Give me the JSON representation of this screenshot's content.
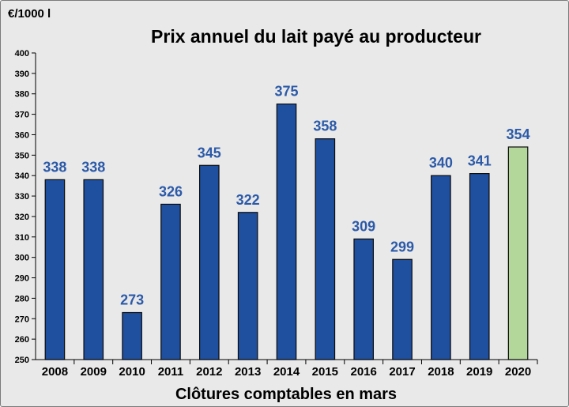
{
  "chart_data": {
    "type": "bar",
    "title": "Prix annuel du lait payé au producteur",
    "unit_label": "€/1000  l",
    "xlabel": "Clôtures comptables en mars",
    "ylabel": "",
    "ylim": [
      250,
      400
    ],
    "ytick_step": 10,
    "grid": false,
    "categories": [
      "2008",
      "2009",
      "2010",
      "2011",
      "2012",
      "2013",
      "2014",
      "2015",
      "2016",
      "2017",
      "2018",
      "2019",
      "2020"
    ],
    "values": [
      338,
      338,
      273,
      326,
      345,
      322,
      375,
      358,
      309,
      299,
      340,
      341,
      354
    ],
    "colors": {
      "bar": "#1f4f9f",
      "bar_highlight": "#b3d69a",
      "bar_edge": "#0b0b0b",
      "label": "#2c5aa8"
    },
    "highlight_index": 12
  }
}
